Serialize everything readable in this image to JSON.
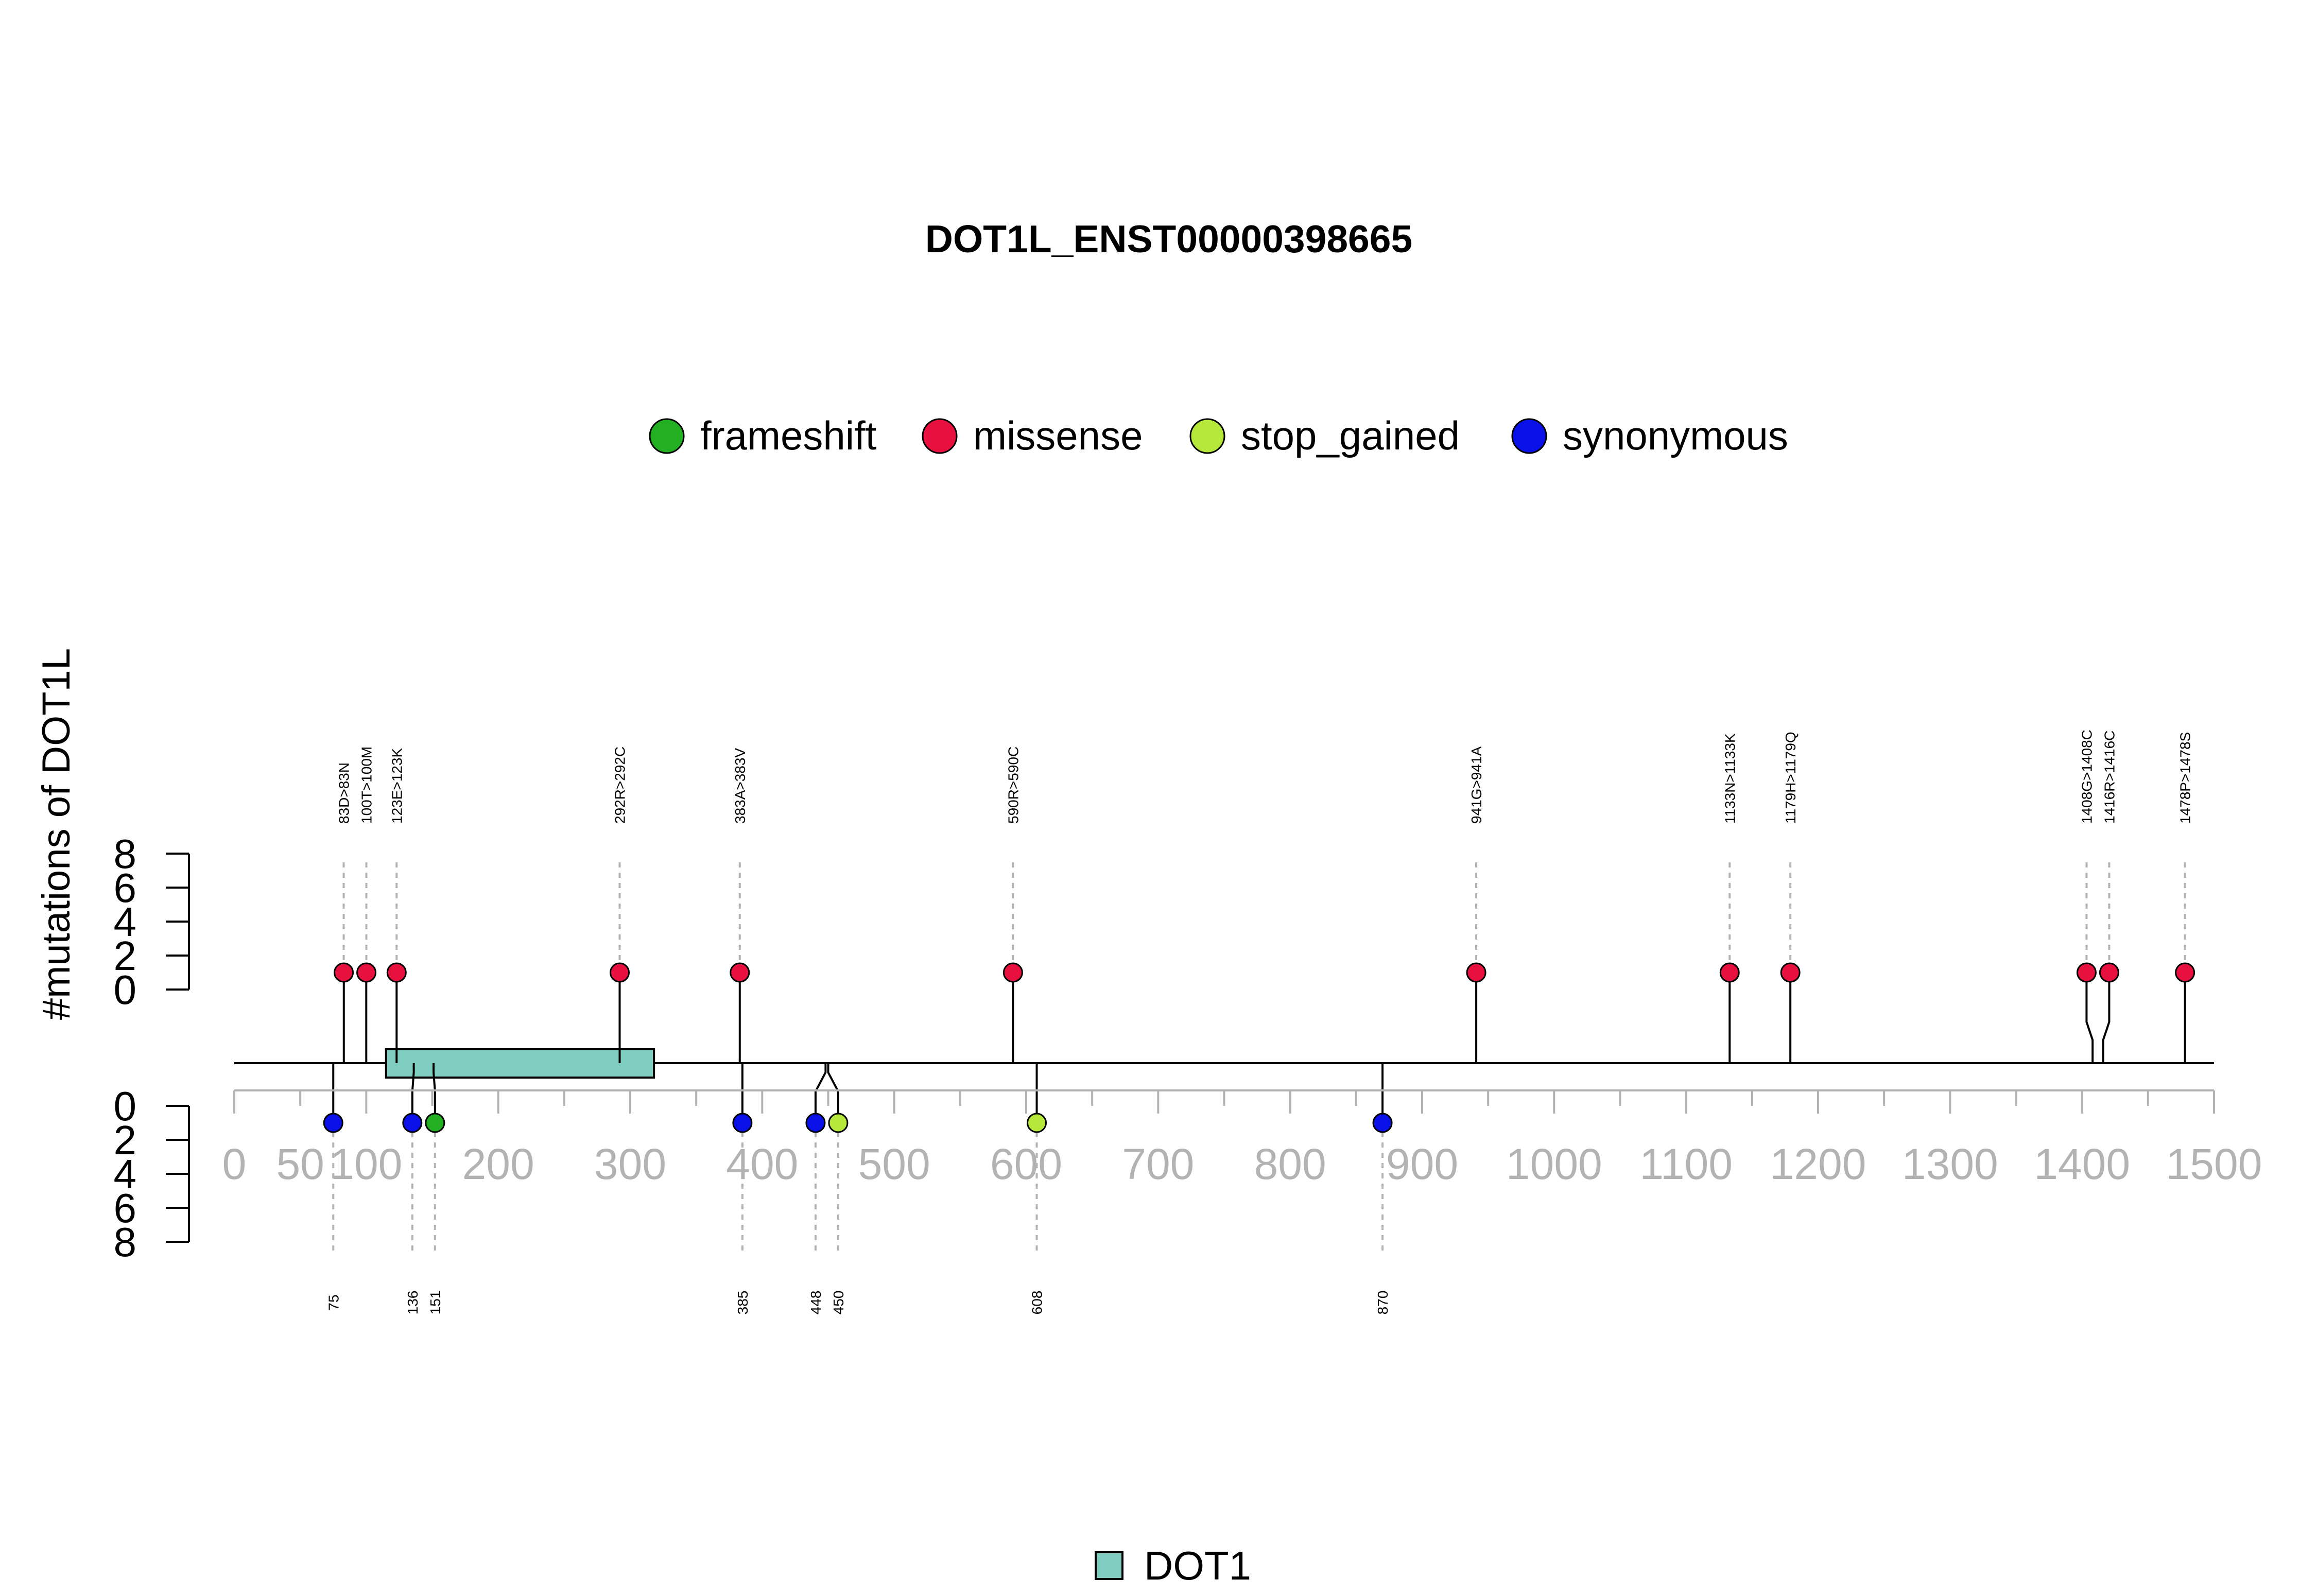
{
  "chart_data": {
    "type": "lollipop",
    "title": "DOT1L_ENST00000398665",
    "ylabel": "#mutations of DOT1L",
    "xlim": [
      0,
      1500
    ],
    "x_ticks": [
      0,
      50,
      100,
      200,
      300,
      400,
      500,
      600,
      700,
      800,
      900,
      1000,
      1100,
      1200,
      1300,
      1400,
      1500
    ],
    "y_ticks": [
      0,
      2,
      4,
      6,
      8
    ],
    "colors": {
      "frameshift": "#22b022",
      "missense": "#e8103f",
      "stop_gained": "#b5e83a",
      "synonymous": "#0a10e8",
      "domain": "#80cdc1"
    },
    "legend": [
      {
        "name": "frameshift",
        "color": "#22b022"
      },
      {
        "name": "missense",
        "color": "#e8103f"
      },
      {
        "name": "stop_gained",
        "color": "#b5e83a"
      },
      {
        "name": "synonymous",
        "color": "#0a10e8"
      }
    ],
    "domains": [
      {
        "name": "DOT1",
        "start": 115,
        "end": 318,
        "color": "#80cdc1"
      }
    ],
    "upper_mutations": [
      {
        "label": "83D>83N",
        "pos": 83,
        "count": 1,
        "type": "missense"
      },
      {
        "label": "100T>100M",
        "pos": 100,
        "count": 1,
        "type": "missense"
      },
      {
        "label": "123E>123K",
        "pos": 123,
        "count": 1,
        "type": "missense"
      },
      {
        "label": "292R>292C",
        "pos": 292,
        "count": 1,
        "type": "missense"
      },
      {
        "label": "383A>383V",
        "pos": 383,
        "count": 1,
        "type": "missense"
      },
      {
        "label": "590R>590C",
        "pos": 590,
        "count": 1,
        "type": "missense"
      },
      {
        "label": "941G>941A",
        "pos": 941,
        "count": 1,
        "type": "missense"
      },
      {
        "label": "1133N>1133K",
        "pos": 1133,
        "count": 1,
        "type": "missense"
      },
      {
        "label": "1179H>1179Q",
        "pos": 1179,
        "count": 1,
        "type": "missense"
      },
      {
        "label": "1408G>1408C",
        "pos": 1408,
        "count": 1,
        "type": "missense"
      },
      {
        "label": "1416R>1416C",
        "pos": 1416,
        "count": 1,
        "type": "missense"
      },
      {
        "label": "1478P>1478S",
        "pos": 1478,
        "count": 1,
        "type": "missense"
      }
    ],
    "lower_mutations": [
      {
        "label": "75",
        "pos": 75,
        "count": 1,
        "type": "synonymous"
      },
      {
        "label": "136",
        "pos": 136,
        "count": 1,
        "type": "synonymous"
      },
      {
        "label": "151",
        "pos": 151,
        "count": 1,
        "type": "frameshift"
      },
      {
        "label": "385",
        "pos": 385,
        "count": 1,
        "type": "synonymous"
      },
      {
        "label": "448",
        "pos": 448,
        "count": 1,
        "type": "synonymous"
      },
      {
        "label": "450",
        "pos": 450,
        "count": 1,
        "type": "stop_gained"
      },
      {
        "label": "608",
        "pos": 608,
        "count": 1,
        "type": "stop_gained"
      },
      {
        "label": "870",
        "pos": 870,
        "count": 1,
        "type": "synonymous"
      }
    ]
  }
}
